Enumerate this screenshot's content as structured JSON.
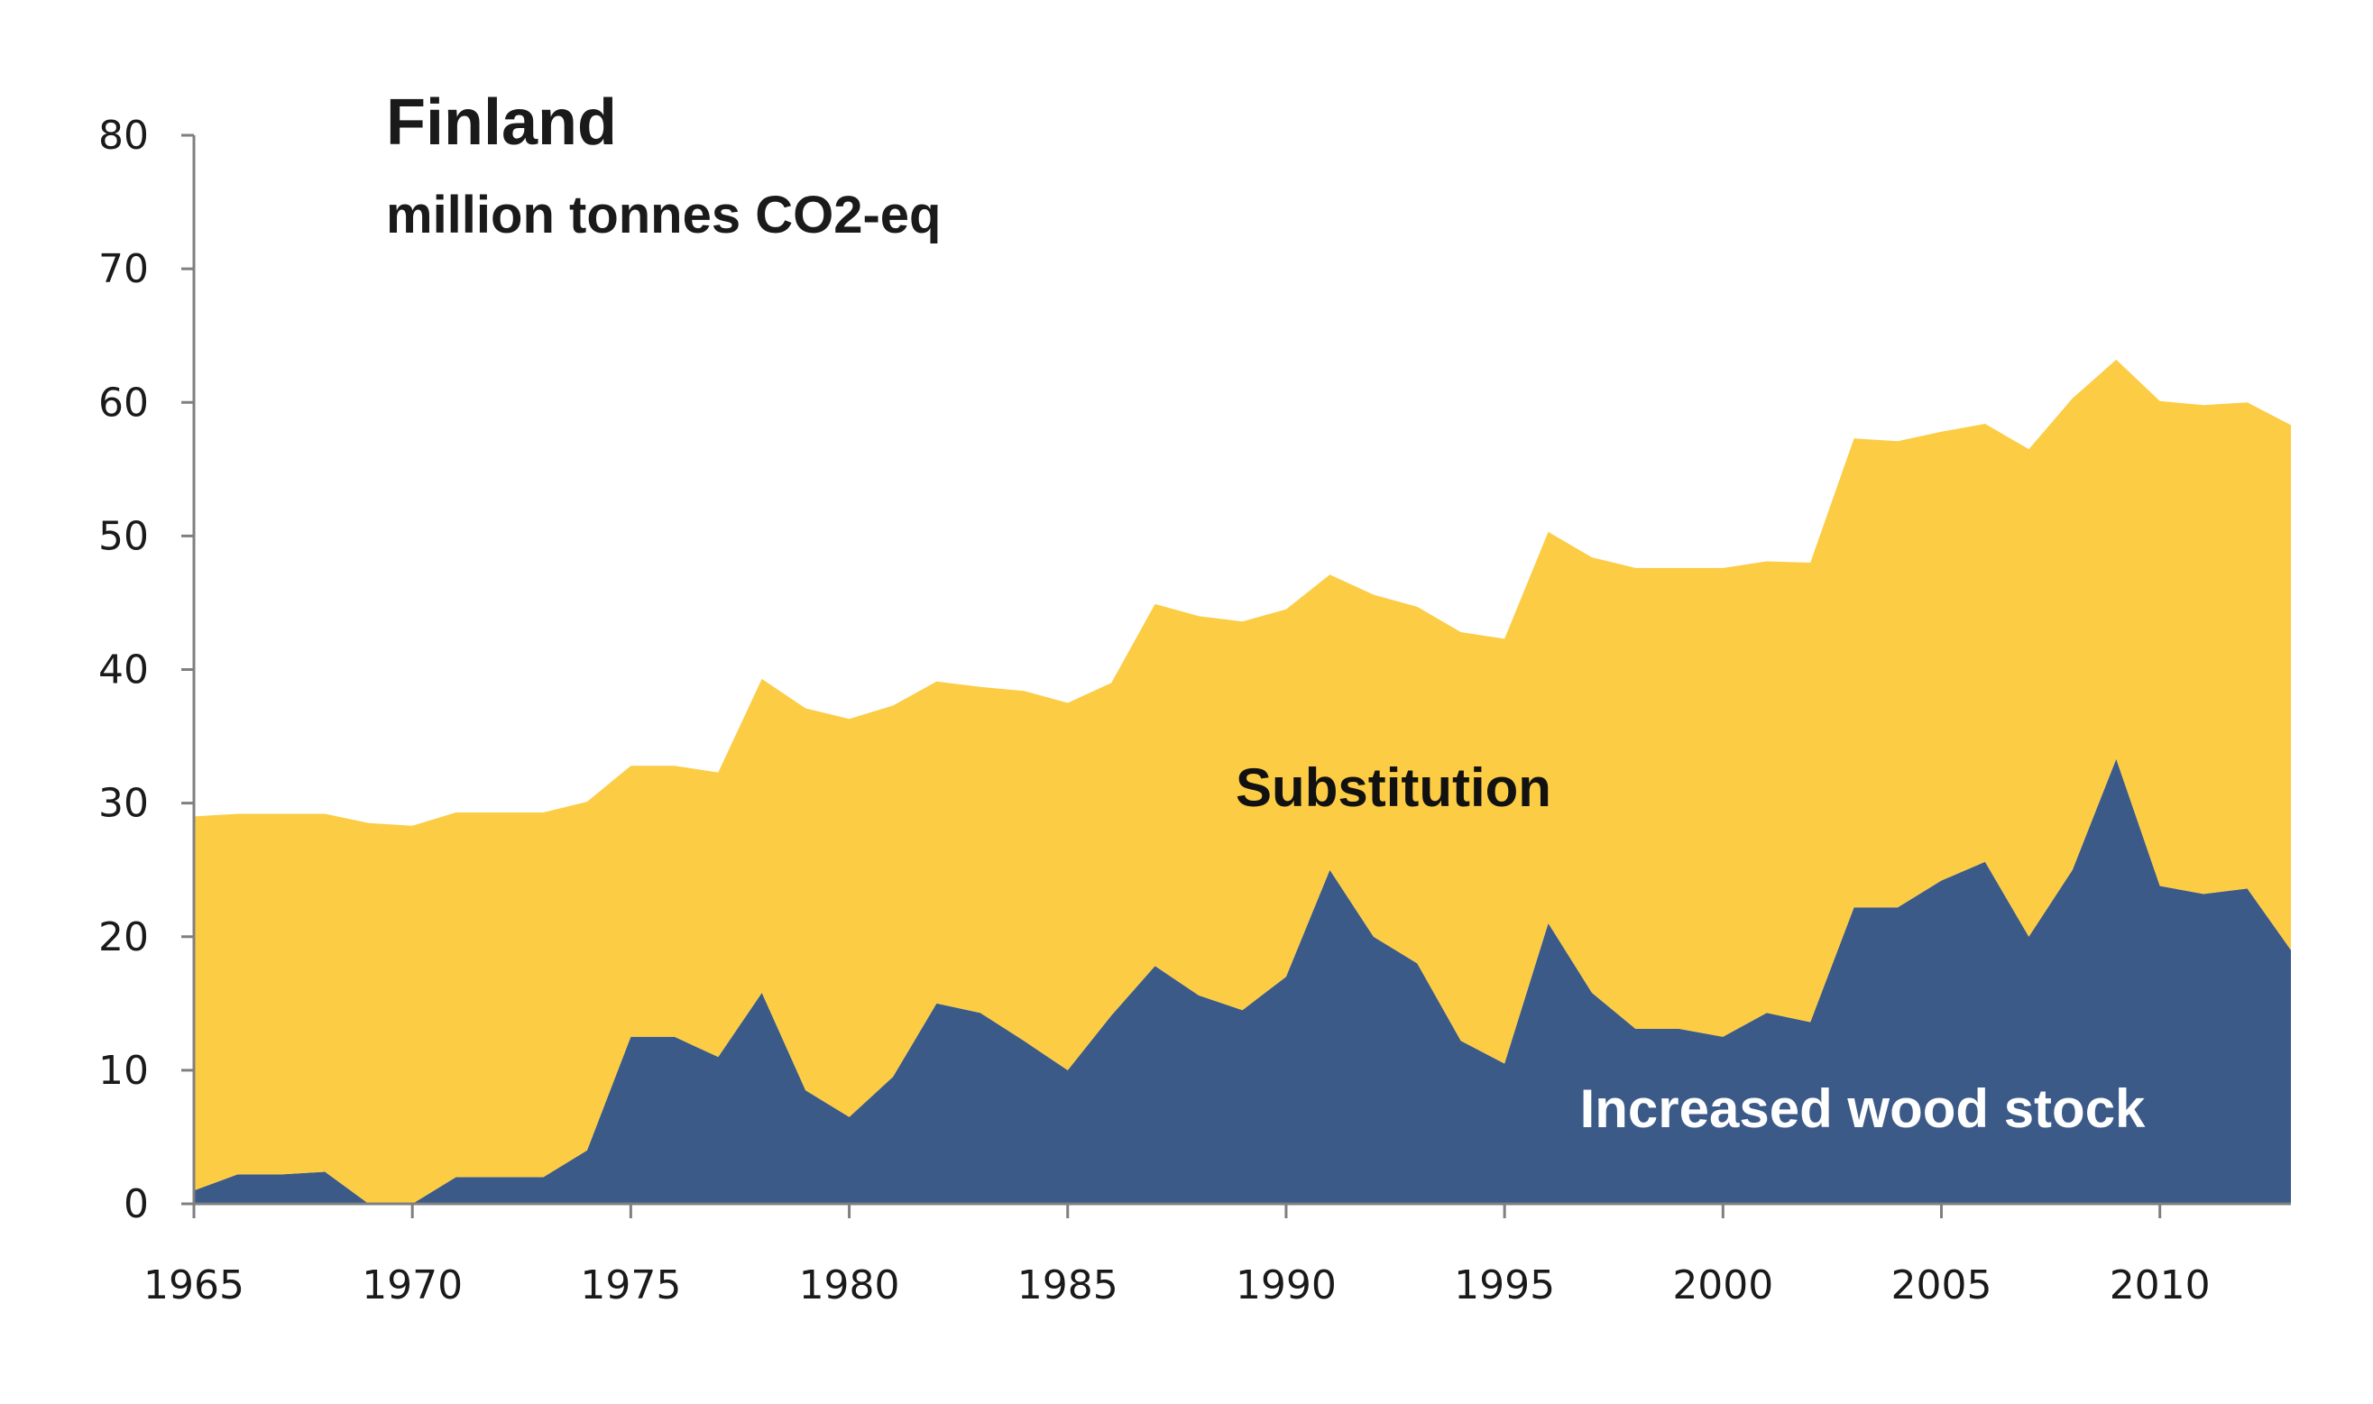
{
  "chart_data": {
    "type": "area",
    "stacked": true,
    "title": "Finland",
    "subtitle": "million tonnes CO2-eq",
    "xlim": [
      1965,
      2013
    ],
    "ylim": [
      0,
      80
    ],
    "x_ticks": [
      1965,
      1970,
      1975,
      1980,
      1985,
      1990,
      1995,
      2000,
      2005,
      2010
    ],
    "y_ticks": [
      0,
      10,
      20,
      30,
      40,
      50,
      60,
      70,
      80
    ],
    "grid": false,
    "legend": "none",
    "x": [
      1965,
      1966,
      1967,
      1968,
      1969,
      1970,
      1971,
      1972,
      1973,
      1974,
      1975,
      1976,
      1977,
      1978,
      1979,
      1980,
      1981,
      1982,
      1983,
      1984,
      1985,
      1986,
      1987,
      1988,
      1989,
      1990,
      1991,
      1992,
      1993,
      1994,
      1995,
      1996,
      1997,
      1998,
      1999,
      2000,
      2001,
      2002,
      2003,
      2004,
      2005,
      2006,
      2007,
      2008,
      2009,
      2010,
      2011,
      2012,
      2013
    ],
    "series": [
      {
        "name": "Increased wood stock",
        "color": "#3b5a88",
        "label_color": "#ffffff",
        "values": [
          1,
          2.2,
          2.2,
          2.4,
          0,
          0,
          2,
          2,
          2,
          4,
          12.5,
          12.5,
          11,
          15.8,
          8.5,
          6.5,
          9.5,
          15,
          14.3,
          12.2,
          10,
          14.1,
          17.8,
          15.6,
          14.5,
          17,
          25,
          20,
          18,
          12.2,
          10.5,
          21,
          15.8,
          13.1,
          13.1,
          12.5,
          14.3,
          13.6,
          22.2,
          22.2,
          24.2,
          25.6,
          20,
          25,
          33.3,
          23.8,
          23.2,
          23.6,
          19
        ]
      },
      {
        "name": "Substitution",
        "color": "#fccc44",
        "label_color": "#111111",
        "values": [
          28,
          27,
          27,
          26.8,
          28.5,
          28.3,
          27.3,
          27.3,
          27.3,
          26.1,
          20.3,
          20.3,
          21.3,
          23.5,
          28.6,
          29.8,
          27.8,
          24.1,
          24.4,
          26.2,
          27.5,
          24.9,
          27.1,
          28.4,
          29.1,
          27.5,
          22.1,
          25.6,
          26.7,
          30.6,
          31.8,
          29.3,
          32.6,
          34.5,
          34.5,
          35.1,
          33.8,
          34.4,
          35.1,
          34.9,
          33.6,
          32.8,
          36.5,
          35.3,
          29.9,
          36.3,
          36.6,
          36.4,
          39.3
        ]
      }
    ]
  }
}
